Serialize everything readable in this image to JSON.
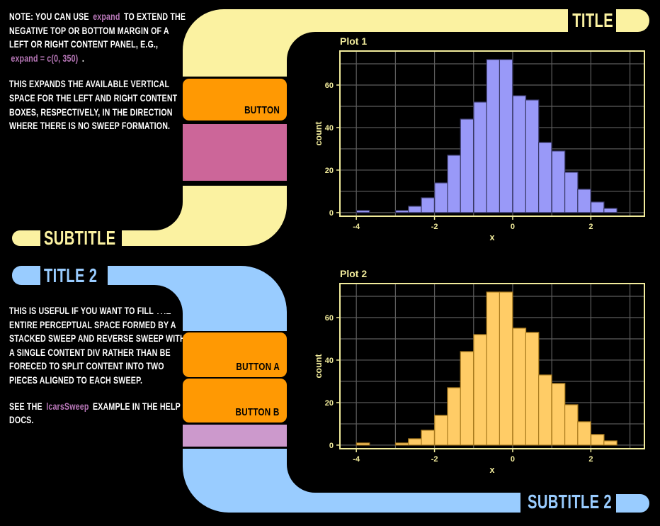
{
  "colors": {
    "background": "#000000",
    "pale_yellow": "#FBF2A1",
    "blue": "#99CCFF",
    "orange": "#FF9903",
    "pink": "#CC6699",
    "lilac": "#CC99CC",
    "body_text": "#FFFFFF",
    "inline_code": "#B877B8",
    "plot_text": "#F2EC9C",
    "grid_gray": "#5E5E5E"
  },
  "top_section": {
    "title": "TITLE",
    "subtitle": "SUBTITLE",
    "button": "BUTTON",
    "para1": [
      {
        "t": "NOTE: YOU CAN USE "
      },
      {
        "t": "expand",
        "code": true
      },
      {
        "t": " TO EXTEND THE NEGATIVE TOP OR BOTTOM MARGIN OF A LEFT OR RIGHT CONTENT PANEL, E.G., "
      },
      {
        "t": "expand = c(0, 350)",
        "code": true
      },
      {
        "t": " ."
      }
    ],
    "para2": [
      {
        "t": "THIS EXPANDS THE AVAILABLE VERTICAL SPACE FOR THE LEFT AND RIGHT CONTENT BOXES, RESPECTIVELY, IN THE DIRECTION WHERE THERE IS NO SWEEP FORMATION."
      }
    ]
  },
  "bottom_section": {
    "title": "TITLE 2",
    "subtitle": "SUBTITLE 2",
    "button_a": "BUTTON A",
    "button_b": "BUTTON B",
    "para3": [
      {
        "t": "THIS IS USEFUL IF YOU WANT TO FILL THE ENTIRE PERCEPTUAL SPACE FORMED BY A STACKED SWEEP AND REVERSE SWEEP WITH A SINGLE CONTENT DIV RATHER THAN BE FORECED TO SPLIT CONTENT INTO TWO PIECES ALIGNED TO EACH SWEEP."
      }
    ],
    "para4": [
      {
        "t": "SEE THE "
      },
      {
        "t": "lcarsSweep",
        "code": true
      },
      {
        "t": " EXAMPLE IN THE HELP DOCS."
      }
    ]
  },
  "chart_data": [
    {
      "type": "bar",
      "title": "Plot 1",
      "xlabel": "x",
      "ylabel": "count",
      "bin_width": 0.333,
      "bin_centers": [
        -3.83,
        -2.83,
        -2.5,
        -2.17,
        -1.83,
        -1.5,
        -1.17,
        -0.83,
        -0.5,
        -0.17,
        0.17,
        0.5,
        0.83,
        1.17,
        1.5,
        1.83,
        2.17,
        2.5
      ],
      "counts": [
        1,
        1,
        3,
        7,
        14,
        27,
        44,
        52,
        72,
        72,
        55,
        53,
        33,
        29,
        19,
        11,
        5,
        2
      ],
      "x_ticks": [
        -4,
        -2,
        0,
        2
      ],
      "x_minor": [
        -3,
        -1,
        1,
        3
      ],
      "y_ticks": [
        0,
        20,
        40,
        60
      ],
      "y_minor": [
        10,
        30,
        50,
        70
      ],
      "xlim": [
        -4.42,
        3.37
      ],
      "ylim": [
        -1.7,
        76
      ],
      "grid": true,
      "legend": "none",
      "bar_fill": "#9999F8",
      "bar_stroke": "#373763"
    },
    {
      "type": "bar",
      "title": "Plot 2",
      "xlabel": "x",
      "ylabel": "count",
      "bin_width": 0.333,
      "bin_centers": [
        -3.83,
        -2.83,
        -2.5,
        -2.17,
        -1.83,
        -1.5,
        -1.17,
        -0.83,
        -0.5,
        -0.17,
        0.17,
        0.5,
        0.83,
        1.17,
        1.5,
        1.83,
        2.17,
        2.5
      ],
      "counts": [
        1,
        1,
        3,
        7,
        14,
        27,
        44,
        52,
        72,
        72,
        55,
        53,
        33,
        29,
        19,
        11,
        5,
        2
      ],
      "x_ticks": [
        -4,
        -2,
        0,
        2
      ],
      "x_minor": [
        -3,
        -1,
        1,
        3
      ],
      "y_ticks": [
        0,
        20,
        40,
        60
      ],
      "y_minor": [
        10,
        30,
        50,
        70
      ],
      "xlim": [
        -4.42,
        3.37
      ],
      "ylim": [
        -1.7,
        76
      ],
      "grid": true,
      "legend": "none",
      "bar_fill": "#FFCC66",
      "bar_stroke": "#A87A1E"
    }
  ]
}
